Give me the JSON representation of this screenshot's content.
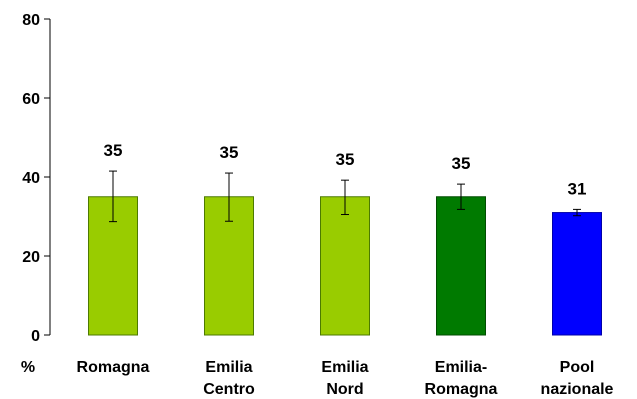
{
  "chart_data": {
    "type": "bar",
    "title": "",
    "xlabel": "",
    "ylabel": "",
    "y_unit_label": "%",
    "ylim": [
      0,
      80
    ],
    "yticks": [
      0,
      20,
      40,
      60,
      80
    ],
    "grid": false,
    "categories": [
      [
        "Romagna"
      ],
      [
        "Emilia",
        "Centro"
      ],
      [
        "Emilia",
        "Nord"
      ],
      [
        "Emilia-",
        "Romagna"
      ],
      [
        "Pool",
        "nazionale"
      ]
    ],
    "values": [
      35,
      35,
      35,
      35,
      31
    ],
    "value_labels": [
      "35",
      "35",
      "35",
      "35",
      "31"
    ],
    "error_low": [
      28.7,
      28.8,
      30.5,
      31.8,
      30.2
    ],
    "error_high": [
      41.5,
      41.0,
      39.2,
      38.2,
      31.8
    ],
    "colors": [
      "#99cc00",
      "#99cc00",
      "#99cc00",
      "#007a00",
      "#0000ff"
    ],
    "bar_edge_colors": [
      "#4c7a00",
      "#4c7a00",
      "#4c7a00",
      "#004d00",
      "#0000aa"
    ]
  }
}
